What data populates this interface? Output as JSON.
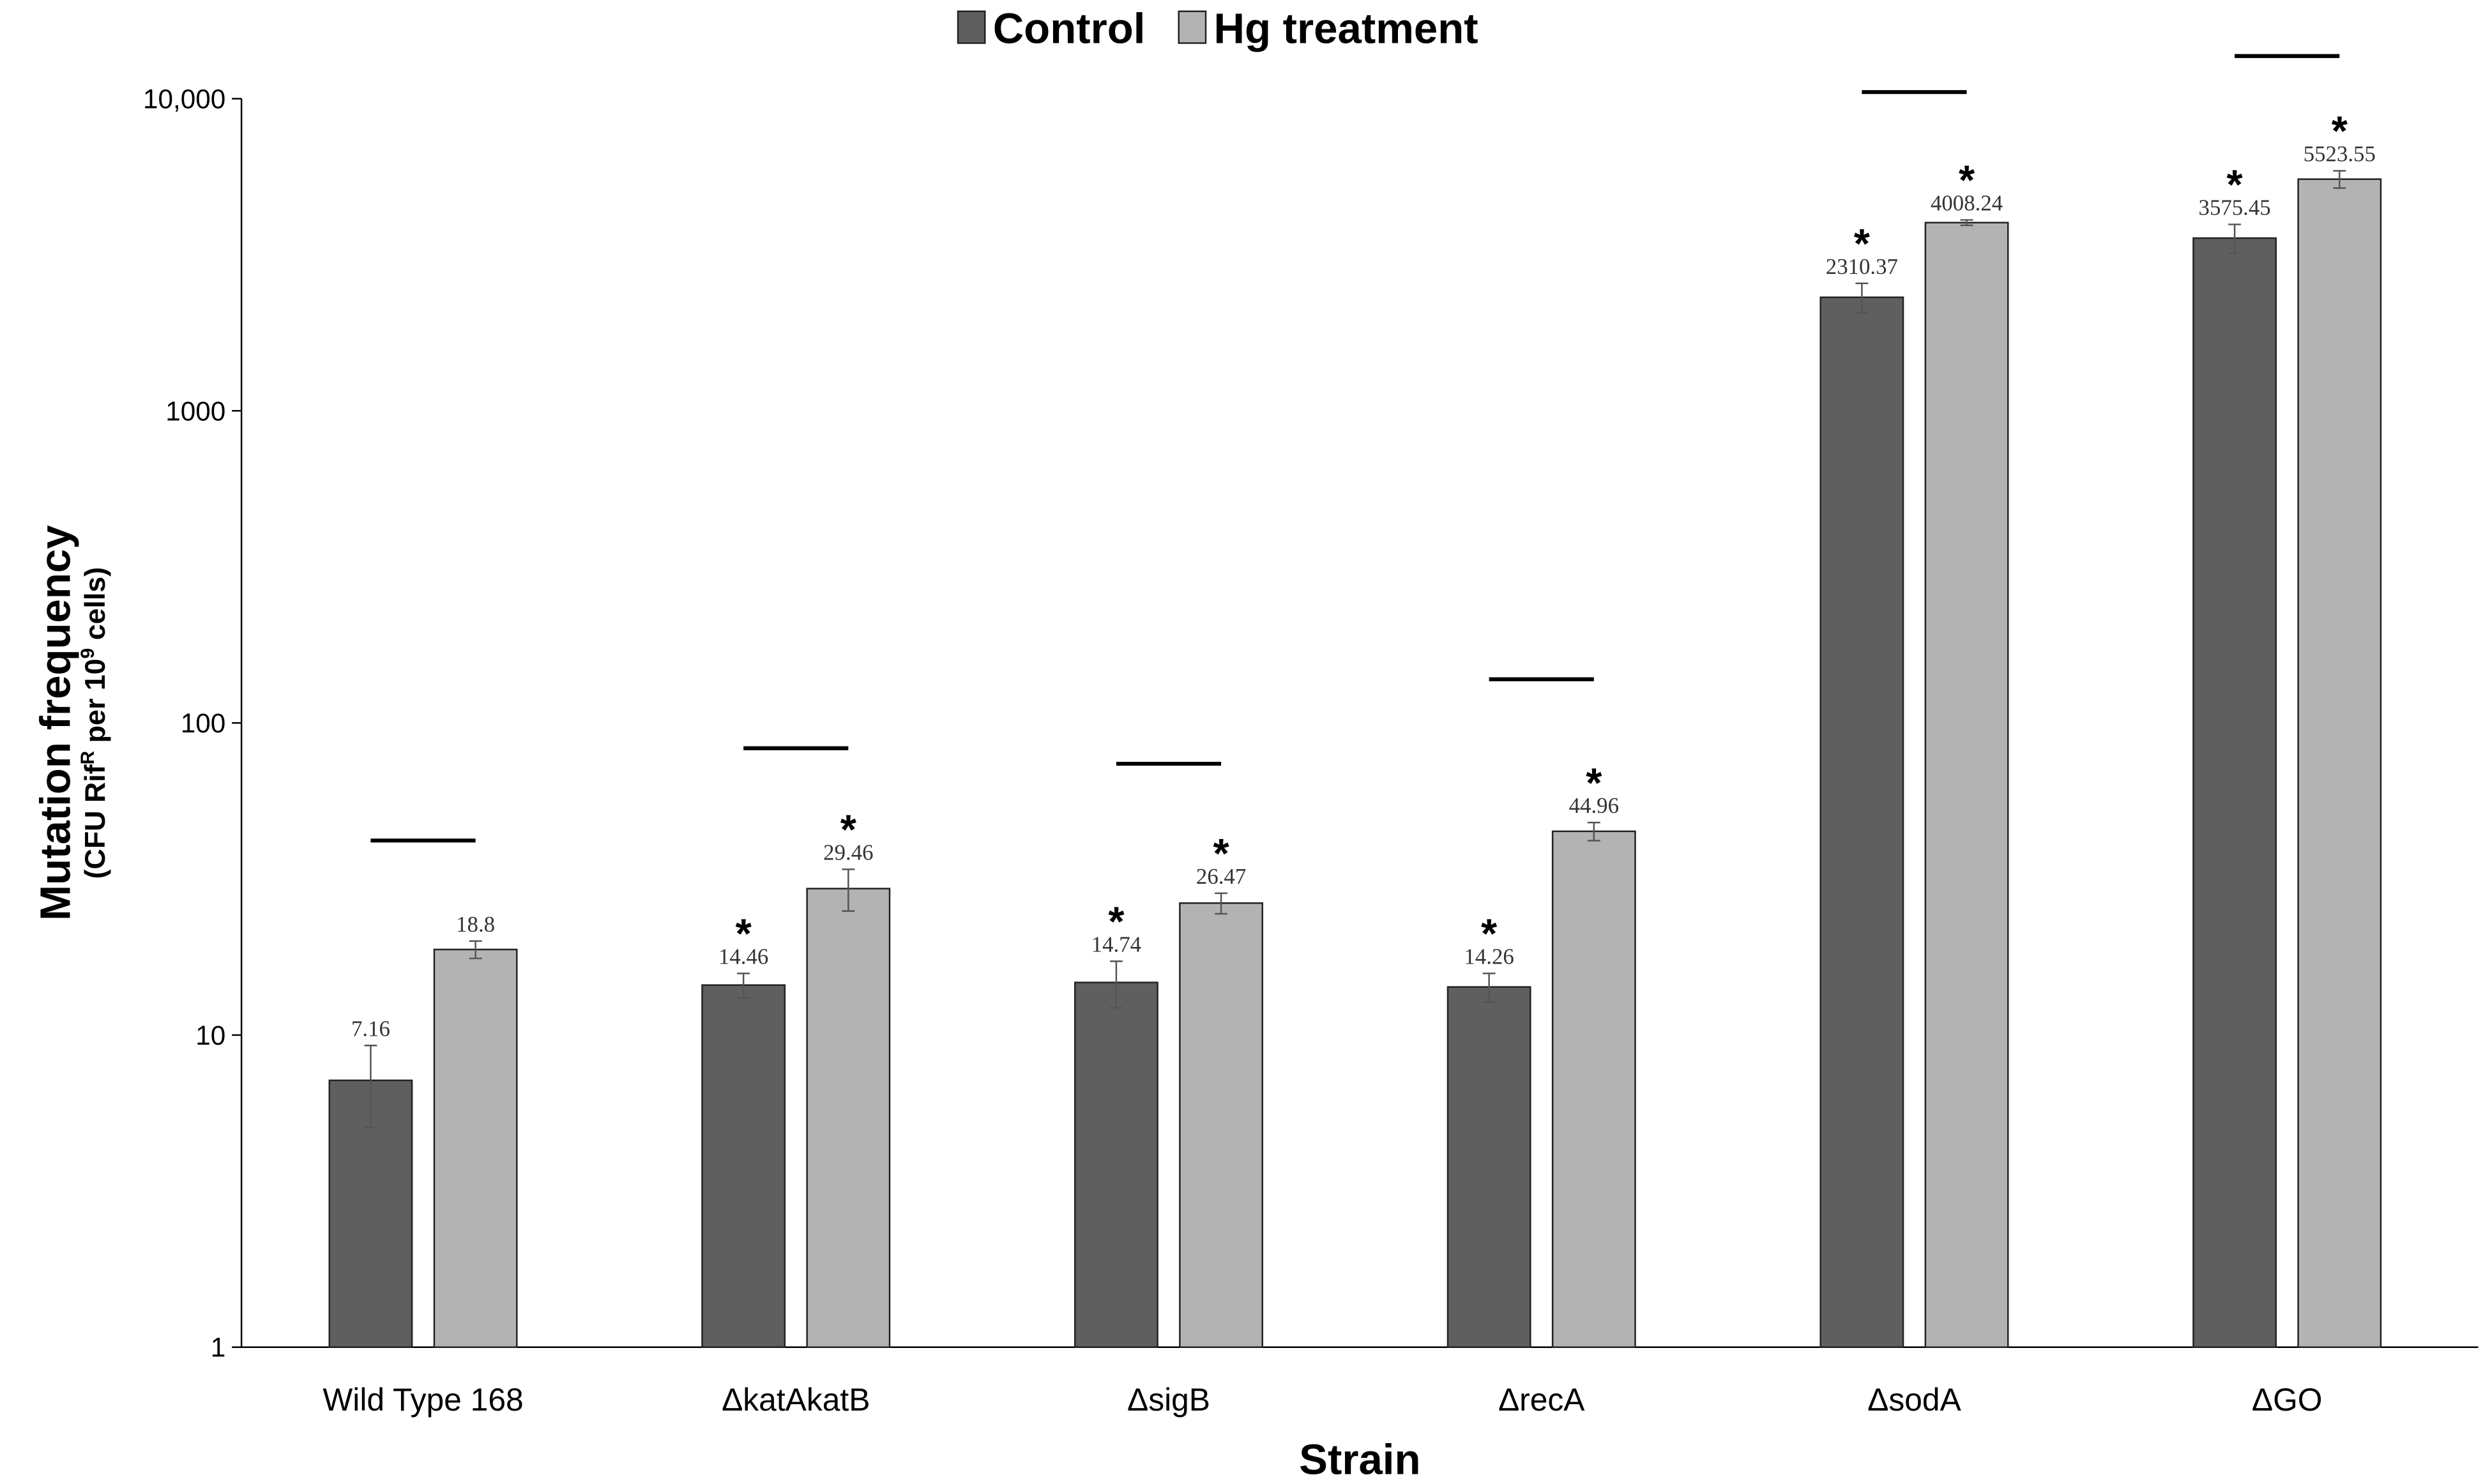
{
  "chart_data": {
    "type": "bar",
    "xlabel": "Strain",
    "ylabel": "Mutation frequency",
    "ylabel_sub": "(CFU Rif",
    "ylabel_sup1": "R",
    "ylabel_mid": " per 10",
    "ylabel_sup2": "9",
    "ylabel_end": " cells)",
    "yscale": "log",
    "ylim": [
      1,
      10000
    ],
    "yticks": [
      1,
      10,
      100,
      1000,
      10000
    ],
    "ytick_labels": [
      "1",
      "10",
      "100",
      "1000",
      "10,000"
    ],
    "grid": false,
    "legend_position": "top",
    "categories": [
      "Wild Type 168",
      "ΔkatAkatB",
      "ΔsigB",
      "ΔrecA",
      "ΔsodA",
      "ΔGO"
    ],
    "series": [
      {
        "name": "Control",
        "color": "#5f5f5f",
        "values": [
          7.16,
          14.46,
          14.74,
          14.26,
          2310.37,
          3575.45
        ],
        "labels": [
          "7.16",
          "14.46",
          "14.74",
          "14.26",
          "2310.37",
          "3575.45"
        ],
        "errors": [
          2.1,
          1.3,
          2.5,
          1.5,
          250,
          380
        ],
        "significant": [
          false,
          true,
          true,
          true,
          true,
          true
        ]
      },
      {
        "name": "Hg treatment",
        "color": "#b3b3b3",
        "values": [
          18.8,
          29.46,
          26.47,
          44.96,
          4008.24,
          5523.55
        ],
        "labels": [
          "18.8",
          "29.46",
          "26.47",
          "44.96",
          "4008.24",
          "5523.55"
        ],
        "errors": [
          1.2,
          4.5,
          2.0,
          3.0,
          80,
          350
        ],
        "significant": [
          false,
          true,
          true,
          true,
          true,
          true
        ]
      }
    ],
    "comparison_bars": [
      42,
      83,
      74,
      138,
      10500,
      13700
    ],
    "significance_marker": "*"
  }
}
